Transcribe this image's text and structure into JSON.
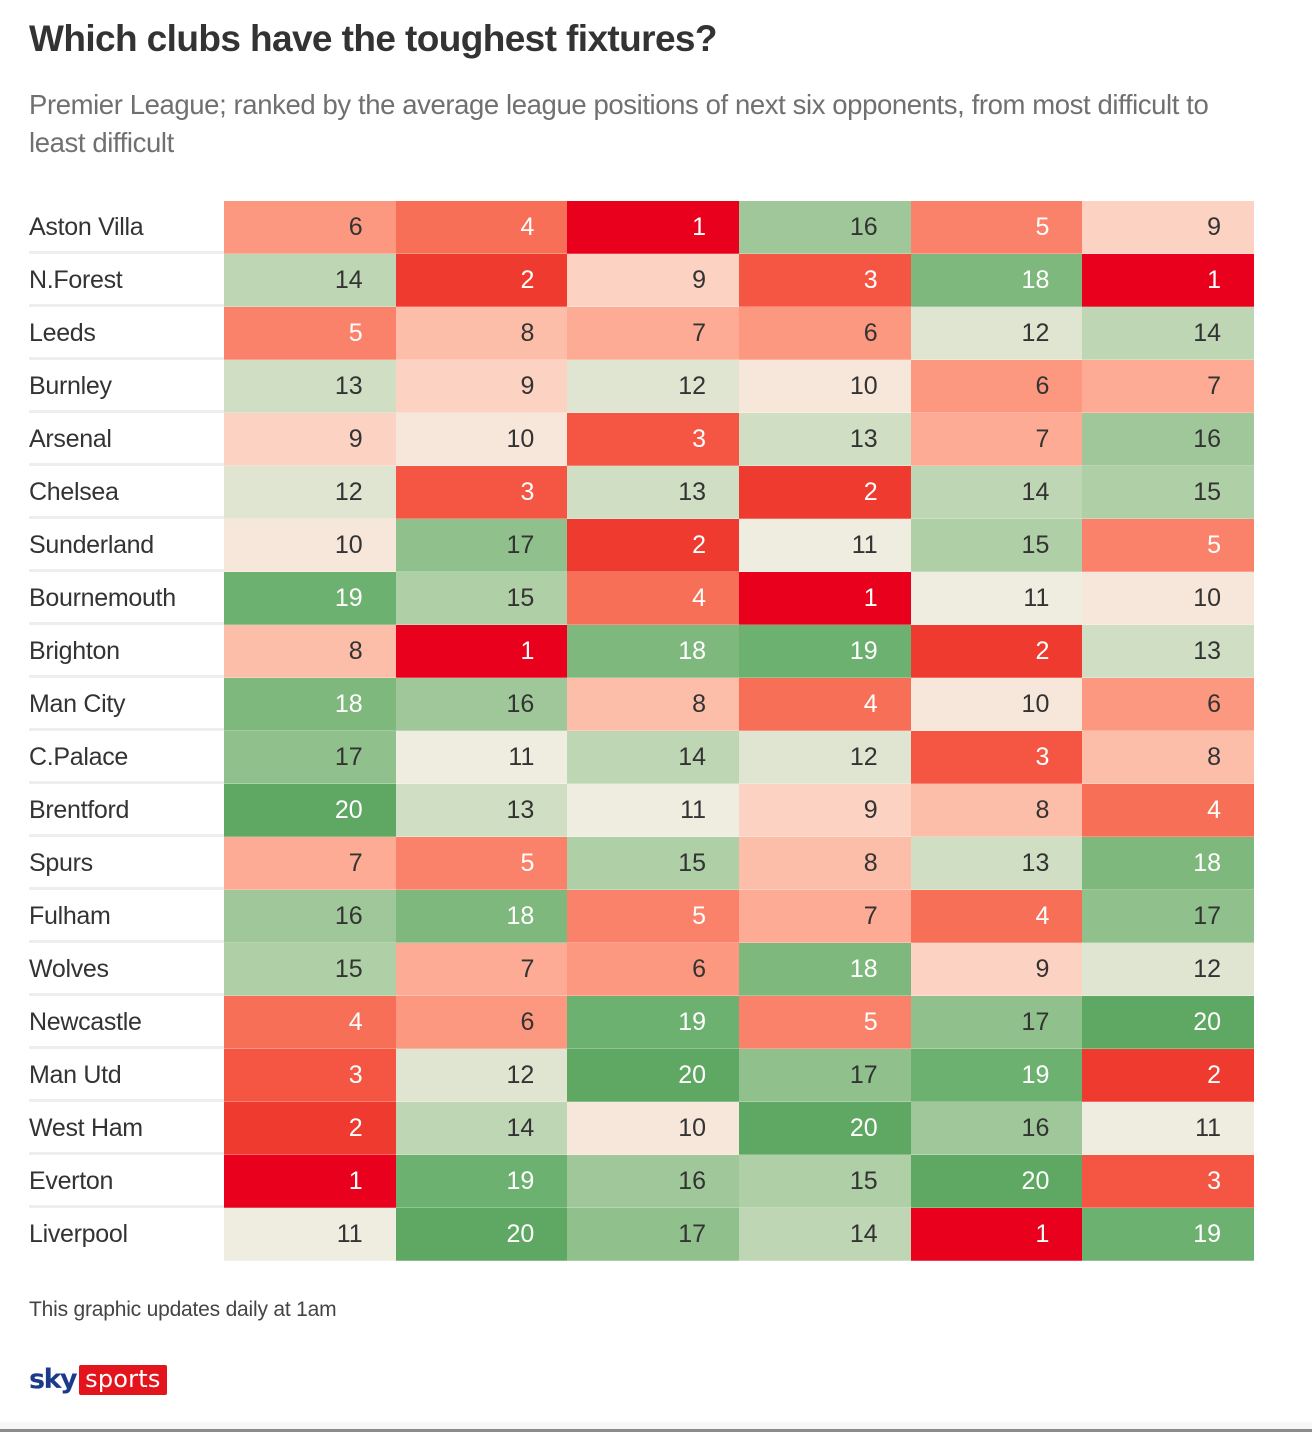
{
  "title": "Which clubs have the toughest fixtures?",
  "subtitle": "Premier League; ranked by the average league positions of next six opponents, from most difficult to least difficult",
  "footer_note": "This graphic updates daily at 1am",
  "logo": {
    "sky": "sky",
    "sports": "sports"
  },
  "colors": {
    "scale": {
      "1": "#e8001c",
      "2": "#ef3a2f",
      "3": "#f55644",
      "4": "#f86f58",
      "5": "#fb826a",
      "6": "#fd9880",
      "7": "#fdab94",
      "8": "#fdbea9",
      "9": "#fcd3c3",
      "10": "#f7e6da",
      "11": "#efece0",
      "12": "#e0e5d1",
      "13": "#d0dec4",
      "14": "#bfd6b5",
      "15": "#afcfa6",
      "16": "#a0c79a",
      "17": "#90c08b",
      "18": "#7fb87d",
      "19": "#6db170",
      "20": "#5ea863"
    },
    "brand_red": "#e3141b",
    "brand_blue": "#1b3a8c"
  },
  "chart_data": {
    "type": "heatmap",
    "title": "Which clubs have the toughest fixtures?",
    "subtitle": "Premier League; ranked by the average league positions of next six opponents, from most difficult to least difficult",
    "xlabel": "",
    "ylabel": "",
    "value_range": [
      1,
      20
    ],
    "color_scale": "red (1, most difficult) to green (20, least difficult)",
    "rows": [
      {
        "club": "Aston Villa",
        "values": [
          6,
          4,
          1,
          16,
          5,
          9
        ]
      },
      {
        "club": "N.Forest",
        "values": [
          14,
          2,
          9,
          3,
          18,
          1
        ]
      },
      {
        "club": "Leeds",
        "values": [
          5,
          8,
          7,
          6,
          12,
          14
        ]
      },
      {
        "club": "Burnley",
        "values": [
          13,
          9,
          12,
          10,
          6,
          7
        ]
      },
      {
        "club": "Arsenal",
        "values": [
          9,
          10,
          3,
          13,
          7,
          16
        ]
      },
      {
        "club": "Chelsea",
        "values": [
          12,
          3,
          13,
          2,
          14,
          15
        ]
      },
      {
        "club": "Sunderland",
        "values": [
          10,
          17,
          2,
          11,
          15,
          5
        ]
      },
      {
        "club": "Bournemouth",
        "values": [
          19,
          15,
          4,
          1,
          11,
          10
        ]
      },
      {
        "club": "Brighton",
        "values": [
          8,
          1,
          18,
          19,
          2,
          13
        ]
      },
      {
        "club": "Man City",
        "values": [
          18,
          16,
          8,
          4,
          10,
          6
        ]
      },
      {
        "club": "C.Palace",
        "values": [
          17,
          11,
          14,
          12,
          3,
          8
        ]
      },
      {
        "club": "Brentford",
        "values": [
          20,
          13,
          11,
          9,
          8,
          4
        ]
      },
      {
        "club": "Spurs",
        "values": [
          7,
          5,
          15,
          8,
          13,
          18
        ]
      },
      {
        "club": "Fulham",
        "values": [
          16,
          18,
          5,
          7,
          4,
          17
        ]
      },
      {
        "club": "Wolves",
        "values": [
          15,
          7,
          6,
          18,
          9,
          12
        ]
      },
      {
        "club": "Newcastle",
        "values": [
          4,
          6,
          19,
          5,
          17,
          20
        ]
      },
      {
        "club": "Man Utd",
        "values": [
          3,
          12,
          20,
          17,
          19,
          2
        ]
      },
      {
        "club": "West Ham",
        "values": [
          2,
          14,
          10,
          20,
          16,
          11
        ]
      },
      {
        "club": "Everton",
        "values": [
          1,
          19,
          16,
          15,
          20,
          3
        ]
      },
      {
        "club": "Liverpool",
        "values": [
          11,
          20,
          17,
          14,
          1,
          19
        ]
      }
    ]
  }
}
